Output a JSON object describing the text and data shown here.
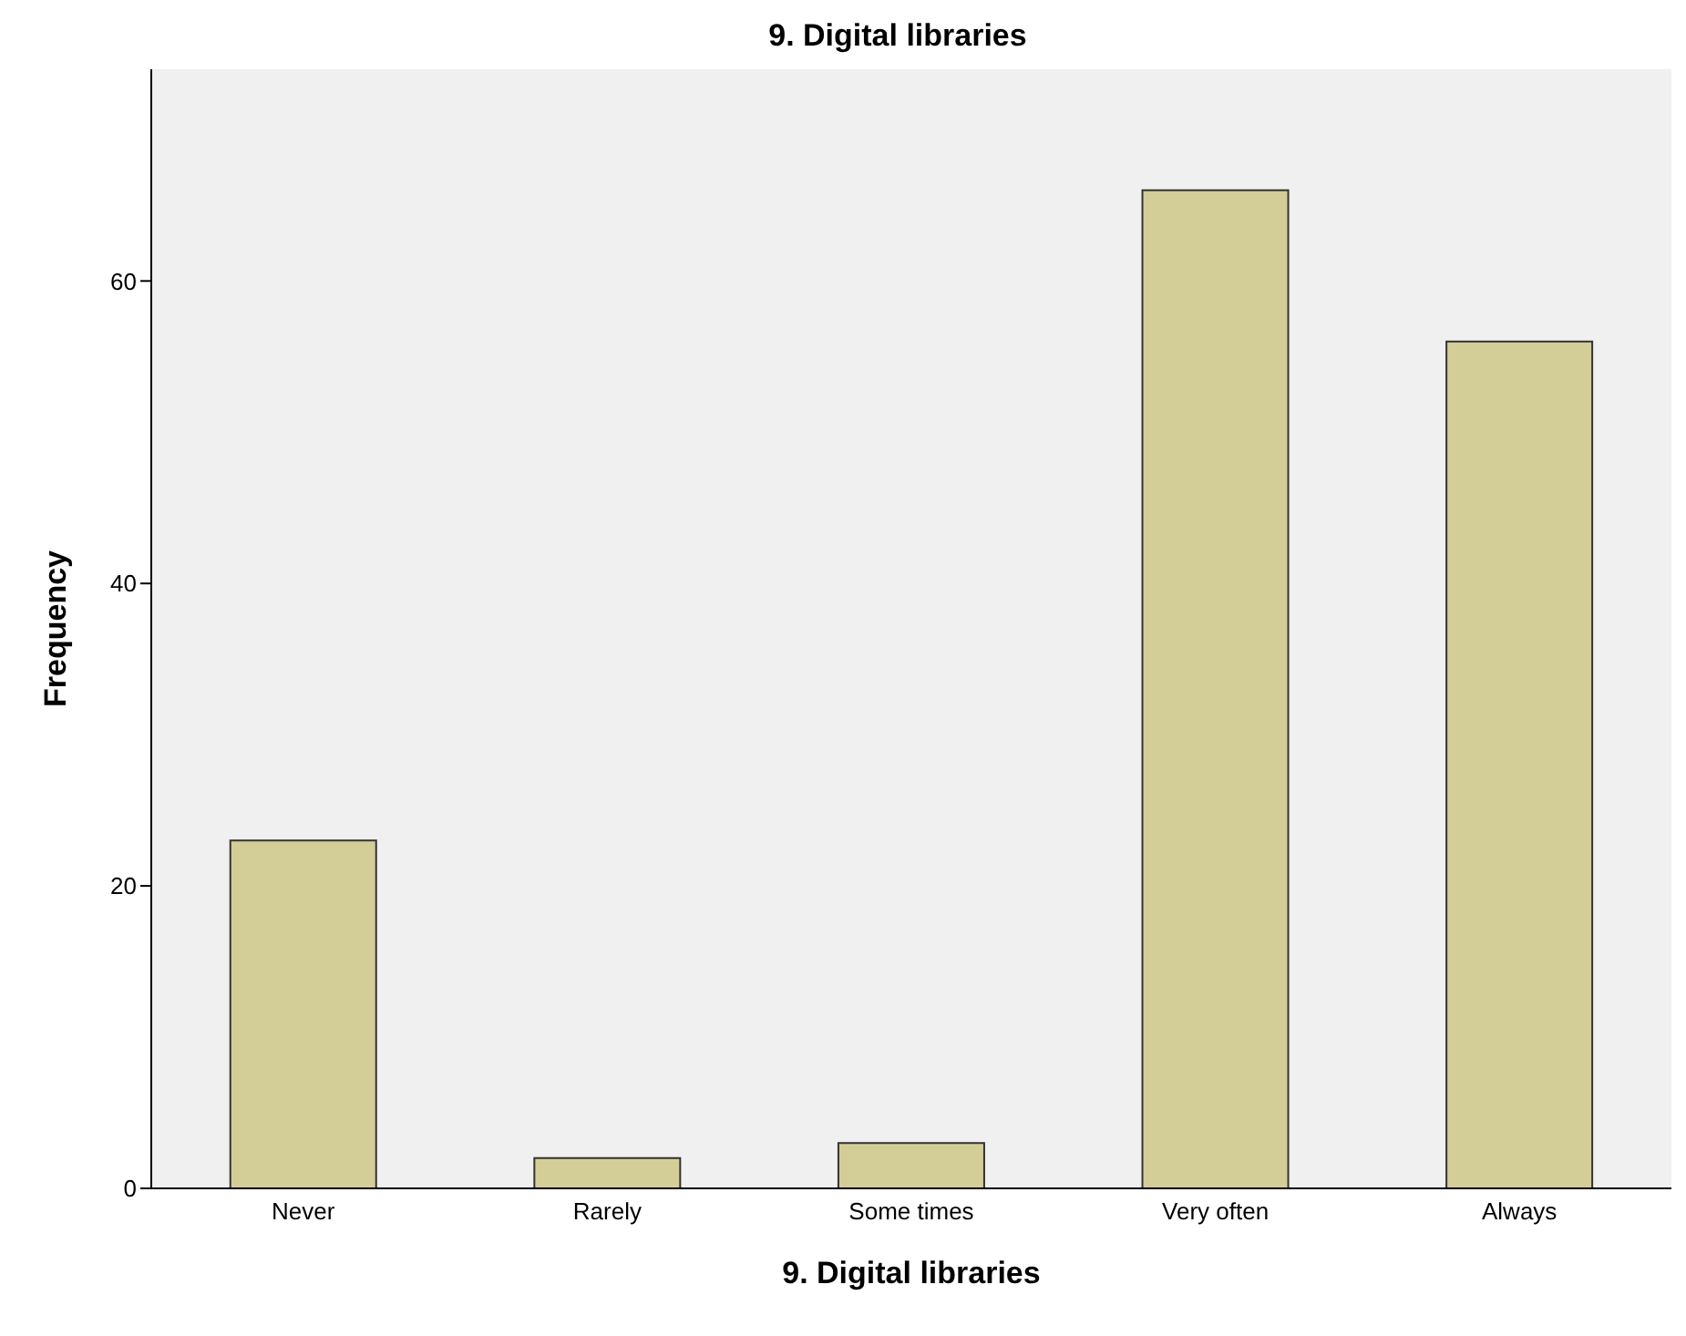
{
  "chart_data": {
    "type": "bar",
    "title": "9. Digital libraries",
    "xlabel": "9. Digital libraries",
    "ylabel": "Frequency",
    "categories": [
      "Never",
      "Rarely",
      "Some times",
      "Very often",
      "Always"
    ],
    "values": [
      23,
      2,
      3,
      66,
      56
    ],
    "color": "#d3ce97",
    "ylim": [
      0,
      74
    ],
    "yticks": [
      0,
      20,
      40,
      60
    ],
    "grid": false
  }
}
